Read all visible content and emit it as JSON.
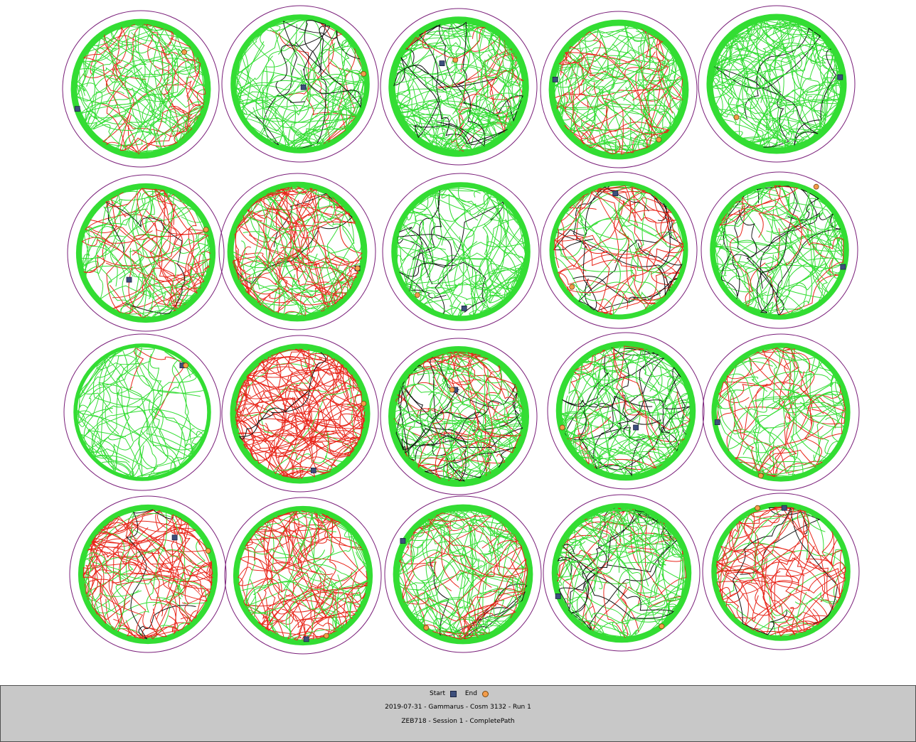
{
  "colors": {
    "ring": "#7a1f7a",
    "path_primary": "#33dd33",
    "path_secondary": "#e8261a",
    "path_tertiary": "#111111",
    "start": "#3d4f7c",
    "end": "#f39c4a",
    "footer_bg": "#c8c8c8"
  },
  "arenas": [
    {
      "row": 1,
      "col": 1,
      "red": 0.25,
      "black": 0.05,
      "density": 0.8,
      "start": [
        -0.95,
        0.3
      ],
      "end": [
        0.65,
        -0.55
      ]
    },
    {
      "row": 1,
      "col": 2,
      "red": 0.05,
      "black": 0.45,
      "density": 0.6,
      "start": [
        0.05,
        0.05
      ],
      "end": [
        0.95,
        -0.15
      ]
    },
    {
      "row": 1,
      "col": 3,
      "red": 0.15,
      "black": 0.3,
      "density": 0.9,
      "start": [
        -0.25,
        -0.35
      ],
      "end": [
        -0.05,
        -0.4
      ]
    },
    {
      "row": 1,
      "col": 4,
      "red": 0.3,
      "black": 0.05,
      "density": 0.8,
      "start": [
        -0.95,
        -0.15
      ],
      "end": [
        0.6,
        0.75
      ]
    },
    {
      "row": 1,
      "col": 5,
      "red": 0.05,
      "black": 0.2,
      "density": 0.85,
      "start": [
        0.95,
        -0.1
      ],
      "end": [
        -0.6,
        0.5
      ]
    },
    {
      "row": 2,
      "col": 1,
      "red": 0.4,
      "black": 0.15,
      "density": 0.7,
      "start": [
        -0.25,
        0.4
      ],
      "end": [
        0.9,
        -0.35
      ]
    },
    {
      "row": 2,
      "col": 2,
      "red": 0.6,
      "black": 0.05,
      "density": 0.8,
      "start": [
        0.9,
        0.25
      ],
      "end": [
        0.9,
        0.25
      ]
    },
    {
      "row": 2,
      "col": 3,
      "red": 0.02,
      "black": 0.35,
      "density": 0.6,
      "start": [
        0.05,
        0.85
      ],
      "end": [
        -0.65,
        0.65
      ]
    },
    {
      "row": 2,
      "col": 4,
      "red": 0.45,
      "black": 0.35,
      "density": 0.5,
      "start": [
        -0.05,
        -0.85
      ],
      "end": [
        -0.7,
        0.55
      ]
    },
    {
      "row": 2,
      "col": 5,
      "red": 0.1,
      "black": 0.35,
      "density": 0.6,
      "start": [
        0.95,
        0.25
      ],
      "end": [
        0.55,
        -0.95
      ]
    },
    {
      "row": 3,
      "col": 1,
      "red": 0.05,
      "black": 0.3,
      "density": 0.25,
      "start": [
        0.6,
        -0.7
      ],
      "end": [
        0.65,
        -0.7
      ]
    },
    {
      "row": 3,
      "col": 2,
      "red": 0.8,
      "black": 0.1,
      "density": 0.85,
      "start": [
        0.2,
        0.85
      ],
      "end": [
        0.95,
        -0.15
      ]
    },
    {
      "row": 3,
      "col": 3,
      "red": 0.3,
      "black": 0.3,
      "density": 1.0,
      "start": [
        -0.05,
        -0.4
      ],
      "end": [
        -0.1,
        -0.4
      ]
    },
    {
      "row": 3,
      "col": 4,
      "red": 0.15,
      "black": 0.4,
      "density": 0.75,
      "start": [
        0.15,
        0.25
      ],
      "end": [
        -0.95,
        0.25
      ]
    },
    {
      "row": 3,
      "col": 5,
      "red": 0.45,
      "black": 0.05,
      "density": 0.55,
      "start": [
        -0.95,
        0.15
      ],
      "end": [
        -0.3,
        0.95
      ]
    },
    {
      "row": 4,
      "col": 1,
      "red": 0.5,
      "black": 0.1,
      "density": 0.7,
      "start": [
        0.4,
        -0.55
      ],
      "end": [
        0.9,
        -0.35
      ]
    },
    {
      "row": 4,
      "col": 2,
      "red": 0.55,
      "black": 0.15,
      "density": 0.7,
      "start": [
        0.05,
        0.95
      ],
      "end": [
        0.35,
        0.9
      ]
    },
    {
      "row": 4,
      "col": 3,
      "red": 0.15,
      "black": 0.25,
      "density": 0.8,
      "start": [
        -0.9,
        -0.5
      ],
      "end": [
        -0.55,
        0.8
      ]
    },
    {
      "row": 4,
      "col": 4,
      "red": 0.2,
      "black": 0.25,
      "density": 0.75,
      "start": [
        -0.95,
        0.35
      ],
      "end": [
        0.6,
        0.8
      ]
    },
    {
      "row": 4,
      "col": 5,
      "red": 0.55,
      "black": 0.05,
      "density": 0.6,
      "start": [
        0.05,
        -0.95
      ],
      "end": [
        -0.35,
        -0.95
      ]
    }
  ],
  "legend": {
    "start_label": "Start",
    "end_label": "End"
  },
  "footer": {
    "line1": "2019-07-31 - Gammarus - Cosm 3132 - Run 1",
    "line2": "ZEB718 - Session 1 - CompletePath"
  }
}
